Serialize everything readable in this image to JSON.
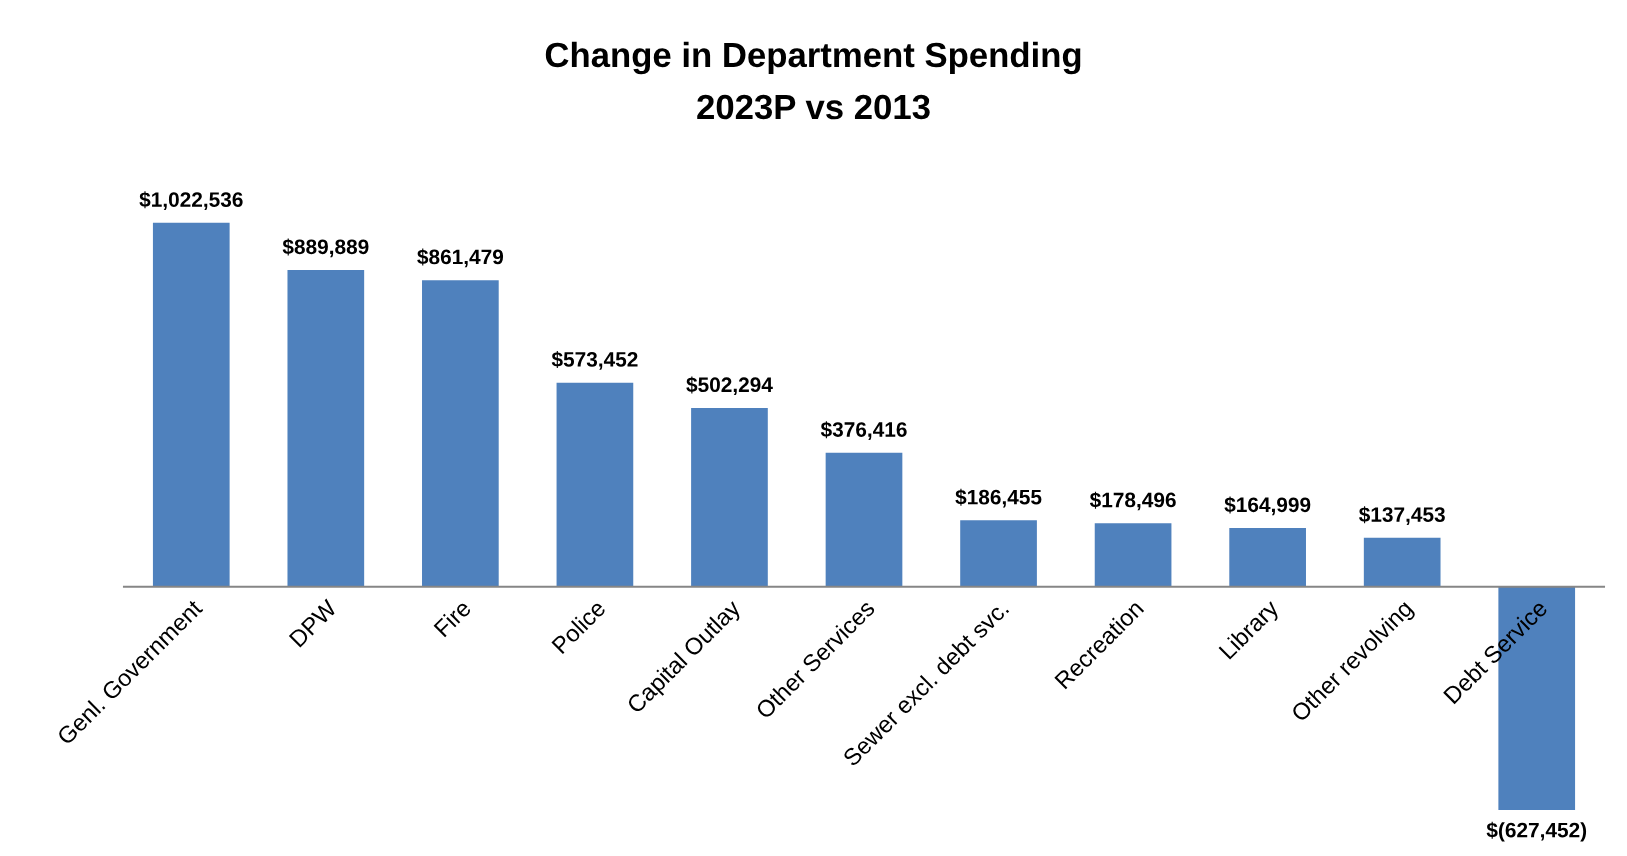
{
  "chart_data": {
    "type": "bar",
    "title": "Change in Department Spending",
    "subtitle": "2023P vs 2013",
    "categories": [
      "Genl. Government",
      "DPW",
      "Fire",
      "Police",
      "Capital Outlay",
      "Other Services",
      "Sewer excl. debt svc.",
      "Recreation",
      "Library",
      "Other revolving",
      "Debt Service"
    ],
    "values": [
      1022536,
      889889,
      861479,
      573452,
      502294,
      376416,
      186455,
      178496,
      164999,
      137453,
      -627452
    ],
    "value_labels": [
      "$1,022,536",
      "$889,889",
      "$861,479",
      "$573,452",
      "$502,294",
      "$376,416",
      "$186,455",
      "$178,496",
      "$164,999",
      "$137,453",
      "$(627,452)"
    ],
    "color": "#4f81bd",
    "grid": false,
    "legend": false
  }
}
